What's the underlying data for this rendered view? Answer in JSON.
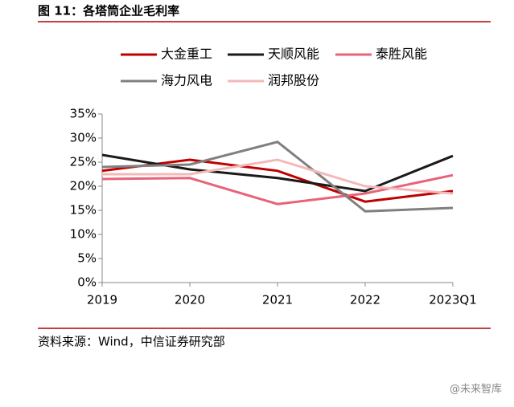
{
  "chart_data": {
    "type": "line",
    "title": "图 11：各塔筒企业毛利率",
    "source": "资料来源：Wind，中信证券研究部",
    "watermark": "@未来智库",
    "categories": [
      "2019",
      "2020",
      "2021",
      "2022",
      "2023Q1"
    ],
    "series": [
      {
        "name": "大金重工",
        "color": "#c00000",
        "values": [
          23.2,
          25.5,
          23.2,
          16.8,
          19
        ]
      },
      {
        "name": "天顺风能",
        "color": "#1a1a1a",
        "values": [
          26.5,
          23.5,
          21.7,
          19,
          26.3
        ]
      },
      {
        "name": "泰胜风能",
        "color": "#e8637a",
        "values": [
          21.5,
          21.7,
          16.3,
          18.5,
          22.3
        ]
      },
      {
        "name": "海力风电",
        "color": "#808080",
        "values": [
          24,
          24.5,
          29.2,
          14.8,
          15.5
        ]
      },
      {
        "name": "润邦股份",
        "color": "#f4b8b8",
        "values": [
          22.5,
          22.5,
          25.5,
          20,
          18.5
        ]
      }
    ],
    "ylim": [
      0,
      35
    ],
    "yticks": [
      {
        "value": 0,
        "label": "0%"
      },
      {
        "value": 5,
        "label": "5%"
      },
      {
        "value": 10,
        "label": "10%"
      },
      {
        "value": 15,
        "label": "15%"
      },
      {
        "value": 20,
        "label": "20%"
      },
      {
        "value": 25,
        "label": "25%"
      },
      {
        "value": 30,
        "label": "30%"
      },
      {
        "value": 35,
        "label": "35%"
      }
    ],
    "grid": false
  }
}
